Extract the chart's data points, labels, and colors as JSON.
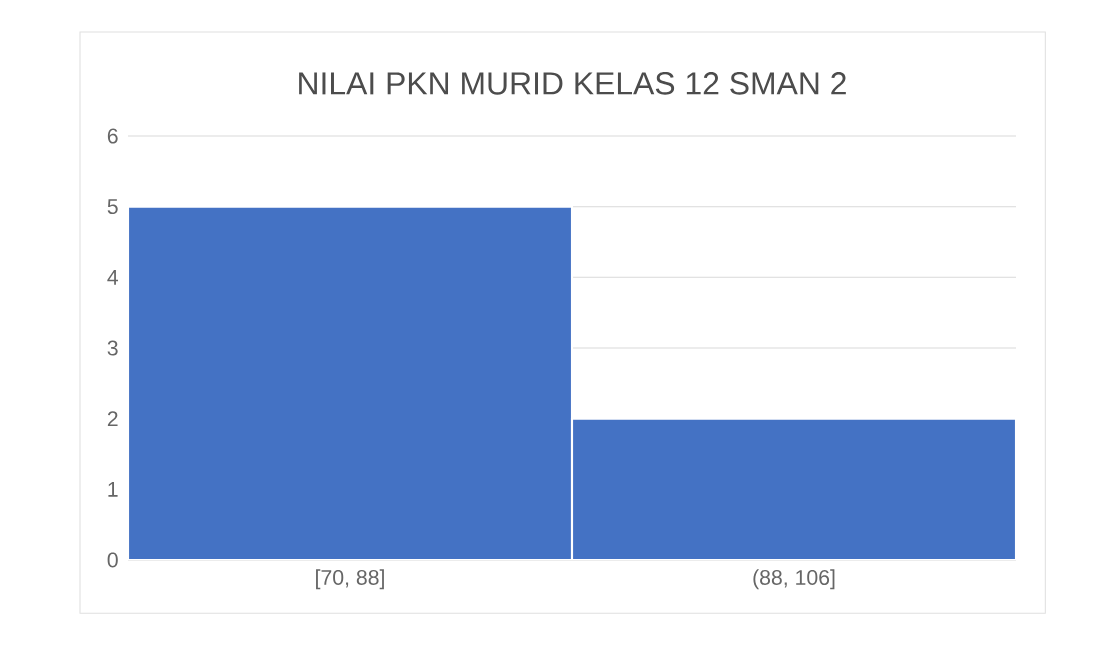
{
  "chart_data": {
    "type": "bar",
    "title": "NILAI PKN MURID KELAS 12 SMAN 2",
    "categories": [
      "[70, 88]",
      "(88, 106]"
    ],
    "values": [
      5,
      2
    ],
    "color": "#4472c4",
    "ylim": [
      0,
      6
    ],
    "yticks": [
      0,
      1,
      2,
      3,
      4,
      5,
      6
    ],
    "grid": "y"
  }
}
